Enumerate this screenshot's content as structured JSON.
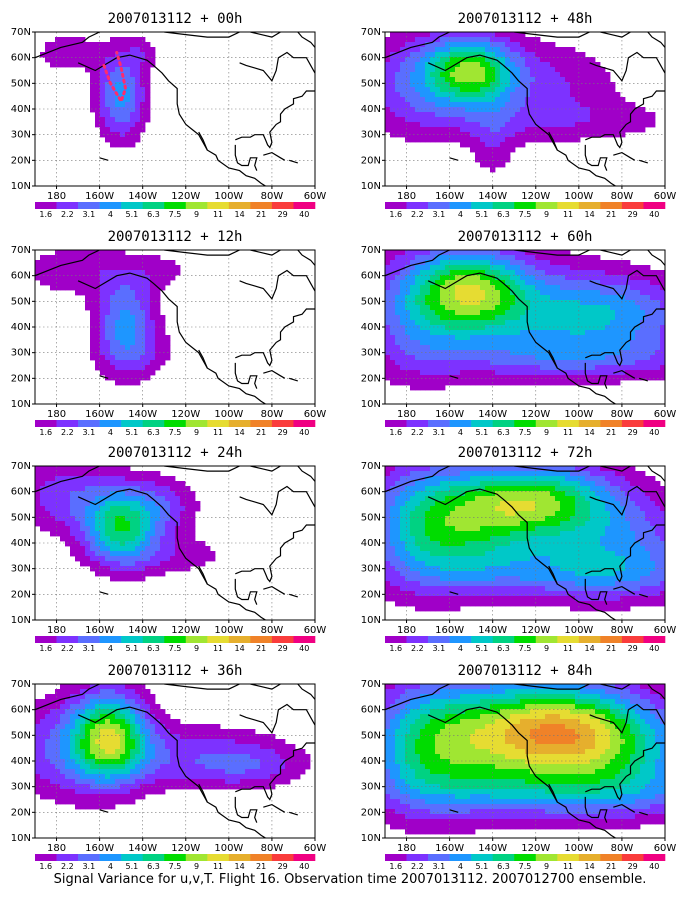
{
  "caption": "Signal Variance for u,v,T. Flight 16. Observation time 2007013112. 2007012700 ensemble.",
  "legend": {
    "levels": [
      "1.6",
      "2.2",
      "3.1",
      "4",
      "5.1",
      "6.3",
      "7.5",
      "9",
      "11",
      "14",
      "21",
      "29",
      "40"
    ],
    "colors": [
      "#a000c8",
      "#7d32ff",
      "#5a6eff",
      "#1e96ff",
      "#00c8c8",
      "#00d282",
      "#00dc00",
      "#a0e632",
      "#e6dc32",
      "#e6af2d",
      "#f08228",
      "#fa3c3c",
      "#f00082"
    ]
  },
  "chart_data": [
    {
      "type": "heatmap",
      "title": "2007013112 + 00h",
      "xlim": [
        -190,
        -60
      ],
      "ylim": [
        10,
        70
      ],
      "x_ticks": [
        "180",
        "160W",
        "140W",
        "120W",
        "100W",
        "80W",
        "60W"
      ],
      "y_ticks": [
        "10N",
        "20N",
        "30N",
        "40N",
        "50N",
        "60N",
        "70N"
      ],
      "flight_track": [
        [
          -158,
          57
        ],
        [
          -155,
          50
        ],
        [
          -150,
          43
        ],
        [
          -148,
          48
        ],
        [
          -150,
          56
        ],
        [
          -152,
          62
        ]
      ]
    },
    {
      "type": "heatmap",
      "title": "2007013112 + 48h",
      "xlim": [
        -190,
        -60
      ],
      "ylim": [
        10,
        70
      ],
      "x_ticks": [
        "180",
        "160W",
        "140W",
        "120W",
        "100W",
        "80W",
        "60W"
      ],
      "y_ticks": [
        "10N",
        "20N",
        "30N",
        "40N",
        "50N",
        "60N",
        "70N"
      ]
    },
    {
      "type": "heatmap",
      "title": "2007013112 + 12h",
      "xlim": [
        -190,
        -60
      ],
      "ylim": [
        10,
        70
      ],
      "x_ticks": [
        "180",
        "160W",
        "140W",
        "120W",
        "100W",
        "80W",
        "60W"
      ],
      "y_ticks": [
        "10N",
        "20N",
        "30N",
        "40N",
        "50N",
        "60N",
        "70N"
      ]
    },
    {
      "type": "heatmap",
      "title": "2007013112 + 60h",
      "xlim": [
        -190,
        -60
      ],
      "ylim": [
        10,
        70
      ],
      "x_ticks": [
        "180",
        "160W",
        "140W",
        "120W",
        "100W",
        "80W",
        "60W"
      ],
      "y_ticks": [
        "10N",
        "20N",
        "30N",
        "40N",
        "50N",
        "60N",
        "70N"
      ]
    },
    {
      "type": "heatmap",
      "title": "2007013112 + 24h",
      "xlim": [
        -190,
        -60
      ],
      "ylim": [
        10,
        70
      ],
      "x_ticks": [
        "180",
        "160W",
        "140W",
        "120W",
        "100W",
        "80W",
        "60W"
      ],
      "y_ticks": [
        "10N",
        "20N",
        "30N",
        "40N",
        "50N",
        "60N",
        "70N"
      ]
    },
    {
      "type": "heatmap",
      "title": "2007013112 + 72h",
      "xlim": [
        -190,
        -60
      ],
      "ylim": [
        10,
        70
      ],
      "x_ticks": [
        "180",
        "160W",
        "140W",
        "120W",
        "100W",
        "80W",
        "60W"
      ],
      "y_ticks": [
        "10N",
        "20N",
        "30N",
        "40N",
        "50N",
        "60N",
        "70N"
      ]
    },
    {
      "type": "heatmap",
      "title": "2007013112 + 36h",
      "xlim": [
        -190,
        -60
      ],
      "ylim": [
        10,
        70
      ],
      "x_ticks": [
        "180",
        "160W",
        "140W",
        "120W",
        "100W",
        "80W",
        "60W"
      ],
      "y_ticks": [
        "10N",
        "20N",
        "30N",
        "40N",
        "50N",
        "60N",
        "70N"
      ]
    },
    {
      "type": "heatmap",
      "title": "2007013112 + 84h",
      "xlim": [
        -190,
        -60
      ],
      "ylim": [
        10,
        70
      ],
      "x_ticks": [
        "180",
        "160W",
        "140W",
        "120W",
        "100W",
        "80W",
        "60W"
      ],
      "y_ticks": [
        "10N",
        "20N",
        "30N",
        "40N",
        "50N",
        "60N",
        "70N"
      ]
    }
  ]
}
